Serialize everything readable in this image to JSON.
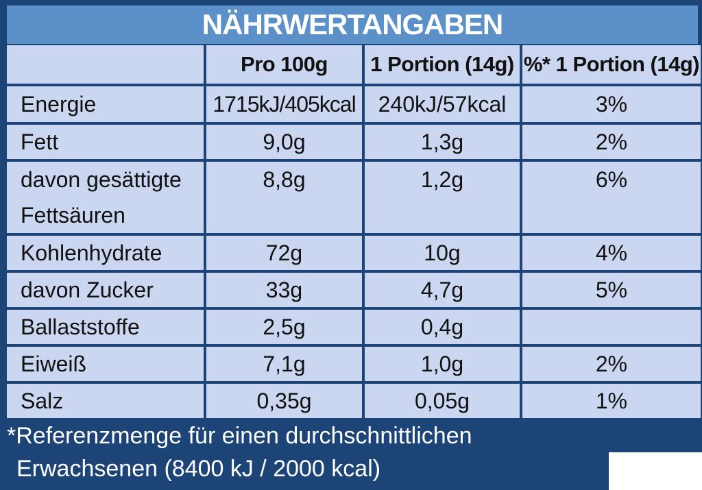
{
  "title": "NÄHRWERTANGABEN",
  "columns": [
    "",
    "Pro 100g",
    "1 Portion (14g)",
    "%* 1 Portion (14g)"
  ],
  "rows": [
    {
      "label": "Energie",
      "per100": "1715kJ/405kcal",
      "portion": "240kJ/57kcal",
      "percent": "3%"
    },
    {
      "label": "Fett",
      "per100": "9,0g",
      "portion": "1,3g",
      "percent": "2%"
    },
    {
      "label": "davon gesättigte Fettsäuren",
      "per100": "8,8g",
      "portion": "1,2g",
      "percent": "6%"
    },
    {
      "label": "Kohlenhydrate",
      "per100": "72g",
      "portion": "10g",
      "percent": "4%"
    },
    {
      "label": "davon Zucker",
      "per100": "33g",
      "portion": "4,7g",
      "percent": "5%"
    },
    {
      "label": "Ballaststoffe",
      "per100": "2,5g",
      "portion": "0,4g",
      "percent": ""
    },
    {
      "label": "Eiweiß",
      "per100": "7,1g",
      "portion": "1,0g",
      "percent": "2%"
    },
    {
      "label": "Salz",
      "per100": "0,35g",
      "portion": "0,05g",
      "percent": "1%"
    }
  ],
  "footnote": {
    "line1": "*Referenzmenge für einen durchschnittlichen",
    "line2": "Erwachsenen (8400 kJ / 2000 kcal)"
  },
  "colors": {
    "panel": "#1d4477",
    "title_bar": "#5b90c8",
    "cell": "#cbd6f1"
  }
}
